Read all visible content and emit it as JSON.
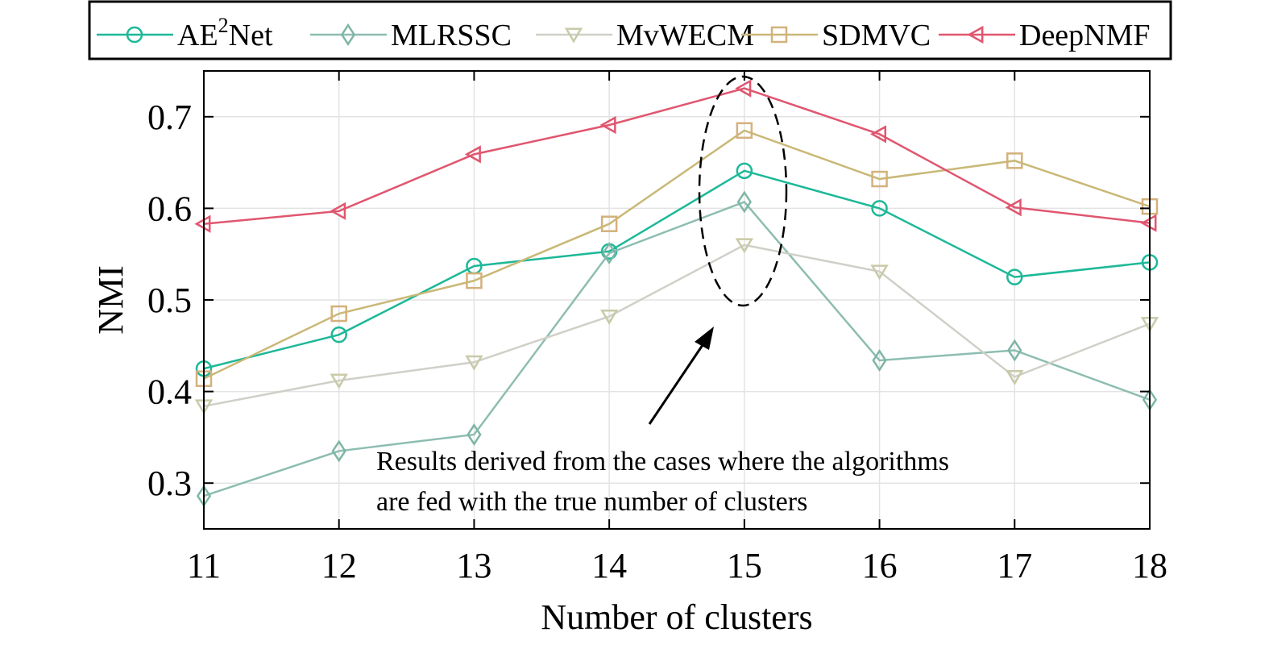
{
  "chart_data": {
    "type": "line",
    "xlabel": "Number of clusters",
    "ylabel": "NMI",
    "x": [
      11,
      12,
      13,
      14,
      15,
      16,
      17,
      18
    ],
    "xlim": [
      11,
      18
    ],
    "ylim": [
      0.25,
      0.75
    ],
    "yticks": [
      0.3,
      0.4,
      0.5,
      0.6,
      0.7
    ],
    "ytick_labels": [
      "0.3",
      "0.4",
      "0.5",
      "0.6",
      "0.7"
    ],
    "xtick_labels": [
      "11",
      "12",
      "13",
      "14",
      "15",
      "16",
      "17",
      "18"
    ],
    "grid": true,
    "legend_placement": "top (above plot, single row)",
    "series": [
      {
        "name": "AE²Net",
        "marker": "circle",
        "color": "#1db898",
        "marker_color": "#1db898",
        "values": [
          0.425,
          0.462,
          0.537,
          0.553,
          0.641,
          0.6,
          0.525,
          0.541
        ]
      },
      {
        "name": "MLRSSC",
        "marker": "diamond",
        "color": "#8dbdb1",
        "marker_color": "#7fb5a6",
        "values": [
          0.286,
          0.335,
          0.353,
          0.551,
          0.607,
          0.434,
          0.445,
          0.391
        ]
      },
      {
        "name": "MvWECM",
        "marker": "triangle-down",
        "color": "#cfd0c8",
        "marker_color": "#c9caa8",
        "values": [
          0.384,
          0.412,
          0.432,
          0.482,
          0.56,
          0.531,
          0.416,
          0.474
        ]
      },
      {
        "name": "SDMVC",
        "marker": "square",
        "color": "#c9b877",
        "marker_color": "#d4b17c",
        "values": [
          0.414,
          0.485,
          0.521,
          0.583,
          0.685,
          0.632,
          0.652,
          0.602
        ]
      },
      {
        "name": "DeepNMF",
        "marker": "triangle-left",
        "color": "#e0566f",
        "marker_color": "#e0566f",
        "values": [
          0.583,
          0.597,
          0.659,
          0.691,
          0.731,
          0.681,
          0.601,
          0.584
        ]
      }
    ],
    "annotation": {
      "lines": [
        "Results derived from the cases where the algorithms",
        "are fed with the true number of clusters"
      ],
      "highlight_x": 15
    }
  }
}
